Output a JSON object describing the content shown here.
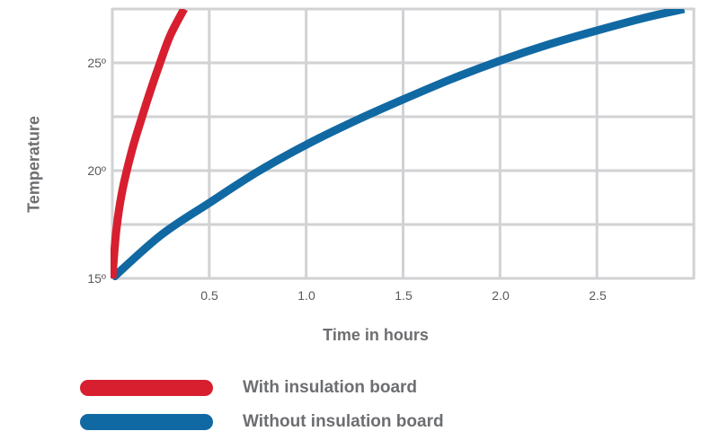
{
  "chart_data": {
    "type": "line",
    "title": "",
    "xlabel": "Time in hours",
    "ylabel": "Temperature",
    "xlim": [
      0,
      3.0
    ],
    "ylim": [
      15,
      27.5
    ],
    "x_ticks": [
      {
        "value": 0.5,
        "label": "0.5"
      },
      {
        "value": 1.0,
        "label": "1.0"
      },
      {
        "value": 1.5,
        "label": "1.5"
      },
      {
        "value": 2.0,
        "label": "2.0"
      },
      {
        "value": 2.5,
        "label": "2.5"
      }
    ],
    "y_ticks": [
      {
        "value": 15,
        "label": "15º"
      },
      {
        "value": 20,
        "label": "20º"
      },
      {
        "value": 25,
        "label": "25º"
      }
    ],
    "grid": true,
    "legend_position": "bottom",
    "series": [
      {
        "name": "With insulation board",
        "color": "#d71f30",
        "x": [
          0,
          0.02,
          0.05,
          0.1,
          0.15,
          0.2,
          0.25,
          0.3,
          0.37
        ],
        "y": [
          15,
          17.2,
          19.0,
          20.9,
          22.4,
          23.8,
          25.1,
          26.3,
          27.5
        ]
      },
      {
        "name": "Without insulation board",
        "color": "#1169a3",
        "x": [
          0,
          0.25,
          0.5,
          0.75,
          1.0,
          1.25,
          1.5,
          1.75,
          2.0,
          2.25,
          2.5,
          2.75,
          2.95
        ],
        "y": [
          15,
          17.0,
          18.5,
          19.95,
          21.2,
          22.3,
          23.3,
          24.25,
          25.1,
          25.85,
          26.5,
          27.1,
          27.5
        ]
      }
    ]
  },
  "axes": {
    "x_title": "Time in hours",
    "y_title": "Temperature",
    "x_tick_labels": [
      "0.5",
      "1.0",
      "1.5",
      "2.0",
      "2.5"
    ],
    "y_tick_labels": [
      "15º",
      "20º",
      "25º"
    ]
  },
  "legend": {
    "items": [
      {
        "label": "With insulation board",
        "color": "#d71f30"
      },
      {
        "label": "Without insulation board",
        "color": "#1169a3"
      }
    ]
  },
  "colors": {
    "grid": "#d1d2d4",
    "text": "#6d6e71",
    "tick_text": "#58595b"
  }
}
